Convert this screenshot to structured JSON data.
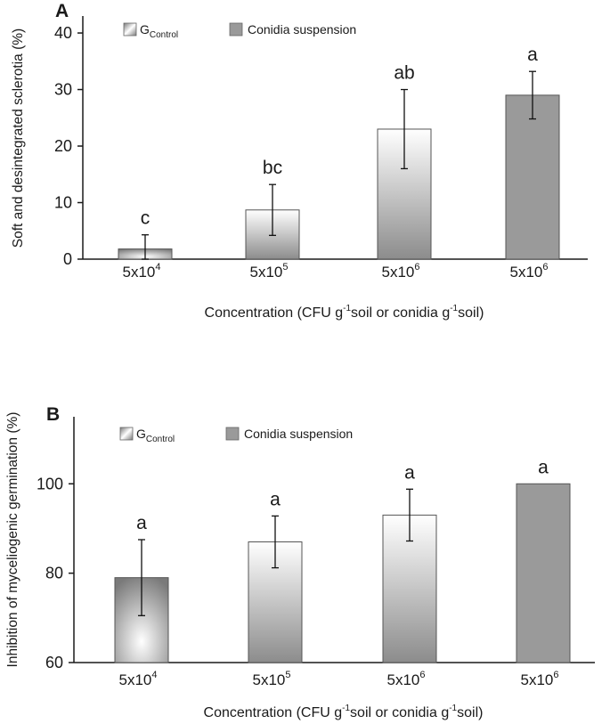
{
  "chart_data": [
    {
      "panel": "A",
      "type": "bar",
      "ylabel": "Soft and desintegrated sclerotia (%)",
      "xlabel": {
        "pre": "Concentration (CFU g",
        "sup1": "-1",
        "mid": "soil or conidia g",
        "sup2": "-1",
        "post": "soil)"
      },
      "ylim": [
        0,
        43
      ],
      "yticks": [
        0,
        10,
        20,
        30,
        40
      ],
      "categories": [
        {
          "base": "5x10",
          "exp": "4"
        },
        {
          "base": "5x10",
          "exp": "5"
        },
        {
          "base": "5x10",
          "exp": "6"
        },
        {
          "base": "5x10",
          "exp": "6"
        }
      ],
      "values": [
        1.8,
        8.7,
        23.0,
        29.0
      ],
      "errors": [
        2.5,
        4.5,
        7.0,
        4.2
      ],
      "letters": [
        "c",
        "bc",
        "ab",
        "a"
      ],
      "bar_series": [
        "control",
        "control",
        "control",
        "conidia"
      ],
      "legend": {
        "control": {
          "base": "G",
          "sub": "Control"
        },
        "conidia": "Conidia suspension"
      }
    },
    {
      "panel": "B",
      "type": "bar",
      "ylabel": "Inhibition of myceliogenic germination (%)",
      "xlabel": {
        "pre": "Concentration (CFU g",
        "sup1": "-1",
        "mid": "soil or conidia g",
        "sup2": "-1",
        "post": "soil)"
      },
      "ylim": [
        60,
        115
      ],
      "yticks": [
        60,
        80,
        100
      ],
      "categories": [
        {
          "base": "5x10",
          "exp": "4"
        },
        {
          "base": "5x10",
          "exp": "5"
        },
        {
          "base": "5x10",
          "exp": "6"
        },
        {
          "base": "5x10",
          "exp": "6"
        }
      ],
      "values": [
        79,
        87,
        93,
        100
      ],
      "errors": [
        8.5,
        5.8,
        5.8,
        0
      ],
      "letters": [
        "a",
        "a",
        "a",
        "a"
      ],
      "bar_series": [
        "control",
        "control",
        "control",
        "conidia"
      ],
      "legend": {
        "control": {
          "base": "G",
          "sub": "Control"
        },
        "conidia": "Conidia suspension"
      }
    }
  ],
  "colors": {
    "conidia": "#9a9a9a",
    "axis": "#1a1a1a",
    "bar_edge": "#555555"
  }
}
